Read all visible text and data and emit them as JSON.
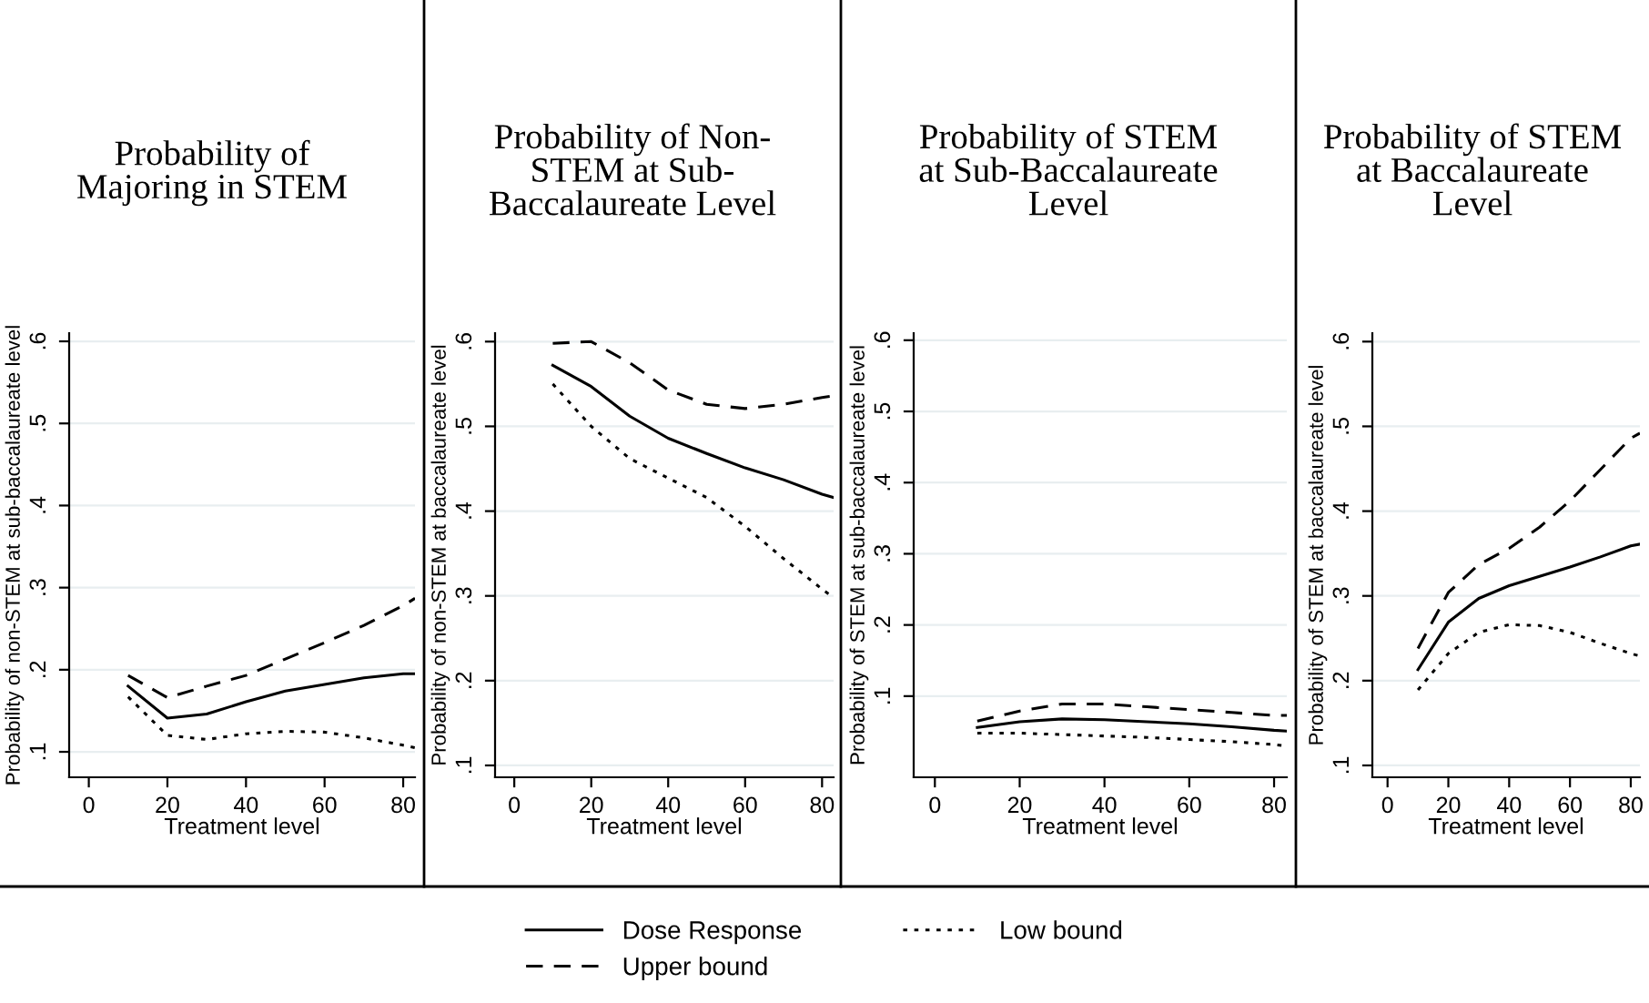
{
  "chart_data": [
    {
      "type": "line",
      "title": "Probability of\nMajoring in STEM",
      "xlabel": "Treatment level",
      "ylabel": "Probability of non-STEM at sub-baccalaureate level",
      "x": [
        10,
        20,
        30,
        40,
        50,
        60,
        70,
        80,
        83
      ],
      "xlim": [
        -5,
        83
      ],
      "xticks": [
        0,
        20,
        40,
        60,
        80
      ],
      "ylim": [
        0.069,
        0.61
      ],
      "yticks": [
        {
          "value": 0.1,
          "label": ".1"
        },
        {
          "value": 0.2,
          "label": ".2"
        },
        {
          "value": 0.3,
          "label": ".3"
        },
        {
          "value": 0.4,
          "label": ".4"
        },
        {
          "value": 0.5,
          "label": ".5"
        },
        {
          "value": 0.6,
          "label": ".6"
        }
      ],
      "grid": "y",
      "legend": "bottom",
      "series": [
        {
          "name": "Dose Response",
          "color": "#000000",
          "line_style": "solid",
          "values": [
            0.18,
            0.141,
            0.146,
            0.161,
            0.174,
            0.182,
            0.19,
            0.195,
            0.195
          ]
        },
        {
          "name": "Upper bound",
          "color": "#000000",
          "line_style": "dashed",
          "values": [
            0.193,
            0.166,
            0.18,
            0.193,
            0.213,
            0.233,
            0.254,
            0.278,
            0.287
          ]
        },
        {
          "name": "Low bound",
          "color": "#000000",
          "line_style": "dotted",
          "values": [
            0.167,
            0.12,
            0.115,
            0.122,
            0.125,
            0.124,
            0.117,
            0.108,
            0.105
          ]
        }
      ]
    },
    {
      "type": "line",
      "title": "Probability of Non-\nSTEM at Sub-\nBaccalaureate Level",
      "xlabel": "Treatment level",
      "ylabel": "Probability of non-STEM at baccalaureate level",
      "x": [
        10,
        20,
        30,
        40,
        50,
        60,
        70,
        80,
        83
      ],
      "xlim": [
        -5,
        83
      ],
      "xticks": [
        0,
        20,
        40,
        60,
        80
      ],
      "ylim": [
        0.086,
        0.61
      ],
      "yticks": [
        {
          "value": 0.1,
          "label": ".1"
        },
        {
          "value": 0.2,
          "label": ".2"
        },
        {
          "value": 0.3,
          "label": ".3"
        },
        {
          "value": 0.4,
          "label": ".4"
        },
        {
          "value": 0.5,
          "label": ".5"
        },
        {
          "value": 0.6,
          "label": ".6"
        }
      ],
      "grid": "y",
      "series": [
        {
          "color": "#000000",
          "line_style": "solid",
          "values": [
            0.572,
            0.547,
            0.512,
            0.486,
            0.468,
            0.451,
            0.437,
            0.42,
            0.416
          ]
        },
        {
          "color": "#000000",
          "line_style": "dashed",
          "values": [
            0.598,
            0.6,
            0.575,
            0.543,
            0.526,
            0.521,
            0.526,
            0.534,
            0.536
          ]
        },
        {
          "color": "#000000",
          "line_style": "dotted",
          "values": [
            0.55,
            0.5,
            0.462,
            0.439,
            0.416,
            0.382,
            0.344,
            0.308,
            0.298
          ]
        }
      ]
    },
    {
      "type": "line",
      "title": "Probability of STEM\nat Sub-Baccalaureate\nLevel",
      "xlabel": "Treatment level",
      "ylabel": "Probability of STEM at sub-baccalaureate level",
      "x": [
        10,
        20,
        30,
        40,
        50,
        60,
        70,
        80,
        83
      ],
      "xlim": [
        -5,
        83
      ],
      "xticks": [
        0,
        20,
        40,
        60,
        80
      ],
      "ylim": [
        -0.014,
        0.61
      ],
      "yticks": [
        {
          "value": 0.1,
          "label": ".1"
        },
        {
          "value": 0.2,
          "label": ".2"
        },
        {
          "value": 0.3,
          "label": ".3"
        },
        {
          "value": 0.4,
          "label": ".4"
        },
        {
          "value": 0.5,
          "label": ".5"
        },
        {
          "value": 0.6,
          "label": ".6"
        }
      ],
      "grid": "y",
      "series": [
        {
          "color": "#000000",
          "line_style": "solid",
          "values": [
            0.056,
            0.064,
            0.068,
            0.067,
            0.064,
            0.061,
            0.057,
            0.052,
            0.051
          ]
        },
        {
          "color": "#000000",
          "line_style": "dashed",
          "values": [
            0.065,
            0.079,
            0.089,
            0.089,
            0.085,
            0.081,
            0.077,
            0.073,
            0.073
          ]
        },
        {
          "color": "#000000",
          "line_style": "dotted",
          "values": [
            0.048,
            0.048,
            0.046,
            0.044,
            0.042,
            0.039,
            0.036,
            0.032,
            0.03
          ]
        }
      ]
    },
    {
      "type": "line",
      "title": "Probability of STEM\nat Baccalaureate\nLevel",
      "xlabel": "Treatment level",
      "ylabel": "Probability of STEM at baccalaureate level",
      "x": [
        10,
        20,
        30,
        40,
        50,
        60,
        70,
        80,
        83
      ],
      "xlim": [
        -5,
        83
      ],
      "xticks": [
        0,
        20,
        40,
        60,
        80
      ],
      "ylim": [
        0.086,
        0.61
      ],
      "yticks": [
        {
          "value": 0.1,
          "label": ".1"
        },
        {
          "value": 0.2,
          "label": ".2"
        },
        {
          "value": 0.3,
          "label": ".3"
        },
        {
          "value": 0.4,
          "label": ".4"
        },
        {
          "value": 0.5,
          "label": ".5"
        },
        {
          "value": 0.6,
          "label": ".6"
        }
      ],
      "grid": "y",
      "series": [
        {
          "color": "#000000",
          "line_style": "solid",
          "values": [
            0.213,
            0.269,
            0.297,
            0.312,
            0.323,
            0.334,
            0.346,
            0.359,
            0.361
          ]
        },
        {
          "color": "#000000",
          "line_style": "dashed",
          "values": [
            0.238,
            0.304,
            0.337,
            0.356,
            0.381,
            0.412,
            0.449,
            0.486,
            0.492
          ]
        },
        {
          "color": "#000000",
          "line_style": "dotted",
          "values": [
            0.189,
            0.232,
            0.257,
            0.266,
            0.265,
            0.257,
            0.244,
            0.232,
            0.229
          ]
        }
      ]
    }
  ]
}
